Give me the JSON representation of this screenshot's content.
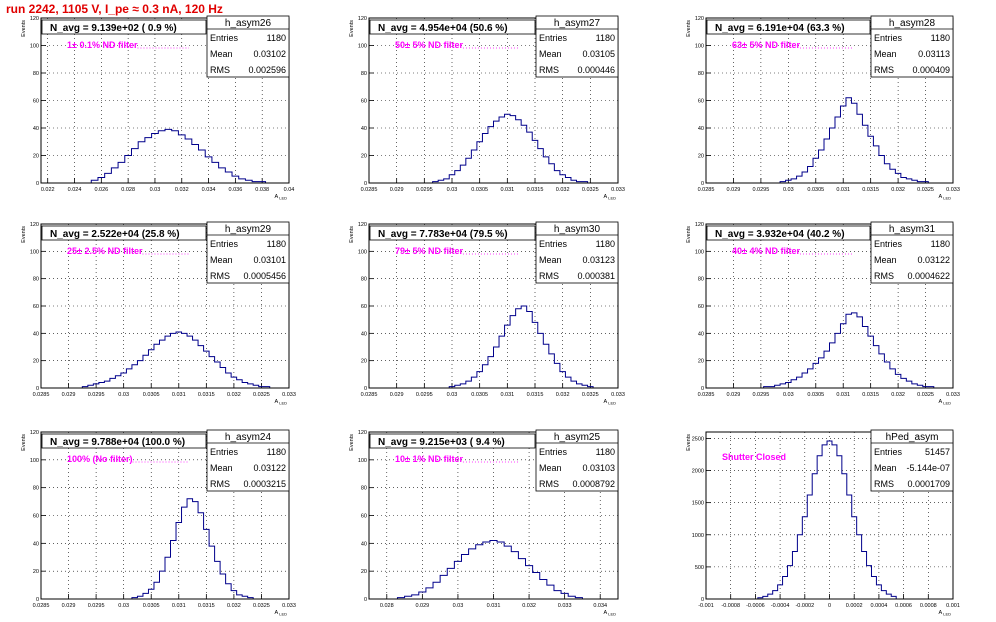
{
  "header": {
    "run_title": "run 2242,  1105 V, I_pe ≈ 0.3 nA, 120 Hz"
  },
  "ylabel": "Events",
  "stat_labels": {
    "entries": "Entries",
    "mean": "Mean",
    "rms": "RMS"
  },
  "chart_data": [
    {
      "type": "histogram",
      "hist_name": "h_asym26",
      "title": "N_avg = 9.139e+02 ( 0.9 %)",
      "annotation": "1± 0.1% ND filter",
      "xlabel": "A_LED",
      "ylabel": "Events",
      "xlim": [
        0.0215,
        0.04
      ],
      "ylim": [
        0,
        120
      ],
      "x_ticks": [
        "0.022",
        "0.024",
        "0.026",
        "0.028",
        "0.03",
        "0.032",
        "0.034",
        "0.036",
        "0.038",
        "0.04"
      ],
      "y_ticks": [
        "0",
        "20",
        "40",
        "60",
        "80",
        "100",
        "120"
      ],
      "grid": true,
      "stats": {
        "entries": "1180",
        "mean": "0.03102",
        "rms": "0.002596"
      },
      "x": [
        0.0255,
        0.026,
        0.0265,
        0.027,
        0.0275,
        0.028,
        0.0285,
        0.029,
        0.0295,
        0.03,
        0.0305,
        0.031,
        0.0315,
        0.032,
        0.0325,
        0.033,
        0.0335,
        0.034,
        0.0345,
        0.035,
        0.0355,
        0.036,
        0.0365,
        0.037,
        0.0375,
        0.038,
        0.0385
      ],
      "values": [
        2,
        4,
        7,
        11,
        15,
        20,
        25,
        30,
        33,
        36,
        38,
        39,
        38,
        35,
        32,
        28,
        24,
        19,
        15,
        11,
        8,
        5,
        3,
        2,
        1,
        1,
        0
      ]
    },
    {
      "type": "histogram",
      "hist_name": "h_asym27",
      "title": "N_avg = 4.954e+04 (50.6 %)",
      "annotation": "50± 5% ND filter",
      "xlabel": "A_LED",
      "ylabel": "Events",
      "xlim": [
        0.0285,
        0.033
      ],
      "ylim": [
        0,
        120
      ],
      "x_ticks": [
        "0.0285",
        "0.029",
        "0.0295",
        "0.03",
        "0.0305",
        "0.031",
        "0.0315",
        "0.032",
        "0.0325",
        "0.033"
      ],
      "y_ticks": [
        "0",
        "20",
        "40",
        "60",
        "80",
        "100",
        "120"
      ],
      "grid": true,
      "stats": {
        "entries": "1180",
        "mean": "0.03105",
        "rms": "0.000446"
      },
      "x": [
        0.0297,
        0.0298,
        0.0299,
        0.03,
        0.0301,
        0.0302,
        0.0303,
        0.0304,
        0.0305,
        0.0306,
        0.0307,
        0.0308,
        0.0309,
        0.031,
        0.0311,
        0.0312,
        0.0313,
        0.0314,
        0.0315,
        0.0316,
        0.0317,
        0.0318,
        0.0319,
        0.032,
        0.0321,
        0.0322,
        0.0323,
        0.0324
      ],
      "values": [
        1,
        2,
        3,
        6,
        9,
        13,
        18,
        24,
        30,
        36,
        41,
        45,
        48,
        50,
        49,
        46,
        42,
        37,
        31,
        25,
        19,
        14,
        9,
        6,
        4,
        2,
        1,
        1
      ]
    },
    {
      "type": "histogram",
      "hist_name": "h_asym28",
      "title": "N_avg = 6.191e+04 (63.3 %)",
      "annotation": "63± 5% ND filter",
      "xlabel": "A_LED",
      "ylabel": "Events",
      "xlim": [
        0.0285,
        0.033
      ],
      "ylim": [
        0,
        120
      ],
      "x_ticks": [
        "0.0285",
        "0.029",
        "0.0295",
        "0.03",
        "0.0305",
        "0.031",
        "0.0315",
        "0.032",
        "0.0325",
        "0.033"
      ],
      "y_ticks": [
        "0",
        "20",
        "40",
        "60",
        "80",
        "100",
        "120"
      ],
      "grid": true,
      "stats": {
        "entries": "1180",
        "mean": "0.03113",
        "rms": "0.000409"
      },
      "x": [
        0.0299,
        0.03,
        0.0301,
        0.0302,
        0.0303,
        0.0304,
        0.0305,
        0.0306,
        0.0307,
        0.0308,
        0.0309,
        0.031,
        0.0311,
        0.0312,
        0.0313,
        0.0314,
        0.0315,
        0.0316,
        0.0317,
        0.0318,
        0.0319,
        0.032,
        0.0321,
        0.0322,
        0.0323,
        0.0324,
        0.0325
      ],
      "values": [
        1,
        2,
        3,
        5,
        8,
        12,
        18,
        24,
        32,
        40,
        48,
        56,
        62,
        58,
        50,
        42,
        34,
        27,
        20,
        14,
        10,
        7,
        4,
        3,
        2,
        1,
        1
      ]
    },
    {
      "type": "histogram",
      "hist_name": "h_asym29",
      "title": "N_avg = 2.522e+04 (25.8 %)",
      "annotation": "25± 2.5% ND filter",
      "xlabel": "A_LED",
      "ylabel": "Events",
      "xlim": [
        0.0285,
        0.033
      ],
      "ylim": [
        0,
        120
      ],
      "x_ticks": [
        "0.0285",
        "0.029",
        "0.0295",
        "0.03",
        "0.0305",
        "0.031",
        "0.0315",
        "0.032",
        "0.0325",
        "0.033"
      ],
      "y_ticks": [
        "0",
        "20",
        "40",
        "60",
        "80",
        "100",
        "120"
      ],
      "grid": true,
      "stats": {
        "entries": "1180",
        "mean": "0.03101",
        "rms": "0.0005456"
      },
      "x": [
        0.0293,
        0.0294,
        0.0295,
        0.0296,
        0.0297,
        0.0298,
        0.0299,
        0.03,
        0.0301,
        0.0302,
        0.0303,
        0.0304,
        0.0305,
        0.0306,
        0.0307,
        0.0308,
        0.0309,
        0.031,
        0.0311,
        0.0312,
        0.0313,
        0.0314,
        0.0315,
        0.0316,
        0.0317,
        0.0318,
        0.0319,
        0.032,
        0.0321,
        0.0322,
        0.0323,
        0.0324,
        0.0325,
        0.0326
      ],
      "values": [
        1,
        2,
        3,
        4,
        5,
        7,
        9,
        11,
        14,
        17,
        20,
        24,
        28,
        32,
        35,
        38,
        40,
        41,
        40,
        38,
        35,
        31,
        27,
        23,
        19,
        15,
        11,
        8,
        6,
        4,
        3,
        2,
        1,
        1
      ]
    },
    {
      "type": "histogram",
      "hist_name": "h_asym30",
      "title": "N_avg = 7.783e+04 (79.5 %)",
      "annotation": "79± 5% ND filter",
      "xlabel": "A_LED",
      "ylabel": "Events",
      "xlim": [
        0.0285,
        0.033
      ],
      "ylim": [
        0,
        120
      ],
      "x_ticks": [
        "0.0285",
        "0.029",
        "0.0295",
        "0.03",
        "0.0305",
        "0.031",
        "0.0315",
        "0.032",
        "0.0325",
        "0.033"
      ],
      "y_ticks": [
        "0",
        "20",
        "40",
        "60",
        "80",
        "100",
        "120"
      ],
      "grid": true,
      "stats": {
        "entries": "1180",
        "mean": "0.03123",
        "rms": "0.000381"
      },
      "x": [
        0.03,
        0.0301,
        0.0302,
        0.0303,
        0.0304,
        0.0305,
        0.0306,
        0.0307,
        0.0308,
        0.0309,
        0.031,
        0.0311,
        0.0312,
        0.0313,
        0.0314,
        0.0315,
        0.0316,
        0.0317,
        0.0318,
        0.0319,
        0.032,
        0.0321,
        0.0322,
        0.0323,
        0.0324,
        0.0325
      ],
      "values": [
        1,
        2,
        3,
        5,
        8,
        12,
        17,
        23,
        30,
        38,
        46,
        53,
        58,
        60,
        56,
        48,
        40,
        32,
        25,
        18,
        12,
        8,
        5,
        3,
        2,
        1
      ]
    },
    {
      "type": "histogram",
      "hist_name": "h_asym31",
      "title": "N_avg = 3.932e+04 (40.2 %)",
      "annotation": "40± 4% ND filter",
      "xlabel": "A_LED",
      "ylabel": "Events",
      "xlim": [
        0.0285,
        0.033
      ],
      "ylim": [
        0,
        120
      ],
      "x_ticks": [
        "0.0285",
        "0.029",
        "0.0295",
        "0.03",
        "0.0305",
        "0.031",
        "0.0315",
        "0.032",
        "0.0325",
        "0.033"
      ],
      "y_ticks": [
        "0",
        "20",
        "40",
        "60",
        "80",
        "100",
        "120"
      ],
      "grid": true,
      "stats": {
        "entries": "1180",
        "mean": "0.03122",
        "rms": "0.0004622"
      },
      "x": [
        0.0296,
        0.0297,
        0.0298,
        0.0299,
        0.03,
        0.0301,
        0.0302,
        0.0303,
        0.0304,
        0.0305,
        0.0306,
        0.0307,
        0.0308,
        0.0309,
        0.031,
        0.0311,
        0.0312,
        0.0313,
        0.0314,
        0.0315,
        0.0316,
        0.0317,
        0.0318,
        0.0319,
        0.032,
        0.0321,
        0.0322,
        0.0323,
        0.0324,
        0.0325,
        0.0326
      ],
      "values": [
        1,
        1,
        2,
        3,
        4,
        6,
        8,
        11,
        14,
        18,
        22,
        27,
        33,
        40,
        47,
        54,
        55,
        52,
        45,
        38,
        31,
        25,
        19,
        14,
        10,
        7,
        5,
        3,
        2,
        1,
        1
      ]
    },
    {
      "type": "histogram",
      "hist_name": "h_asym24",
      "title": "N_avg = 9.788e+04 (100.0 %)",
      "annotation": "100% (No filter)",
      "xlabel": "A_LED",
      "ylabel": "Events",
      "xlim": [
        0.0285,
        0.033
      ],
      "ylim": [
        0,
        120
      ],
      "x_ticks": [
        "0.0285",
        "0.029",
        "0.0295",
        "0.03",
        "0.0305",
        "0.031",
        "0.0315",
        "0.032",
        "0.0325",
        "0.033"
      ],
      "y_ticks": [
        "0",
        "20",
        "40",
        "60",
        "80",
        "100",
        "120"
      ],
      "grid": true,
      "stats": {
        "entries": "1180",
        "mean": "0.03122",
        "rms": "0.0003215"
      },
      "x": [
        0.0302,
        0.0303,
        0.0304,
        0.0305,
        0.0306,
        0.0307,
        0.0308,
        0.0309,
        0.031,
        0.0311,
        0.0312,
        0.0313,
        0.0314,
        0.0315,
        0.0316,
        0.0317,
        0.0318,
        0.0319,
        0.032,
        0.0321,
        0.0322,
        0.0323
      ],
      "values": [
        1,
        2,
        4,
        7,
        12,
        20,
        30,
        42,
        55,
        66,
        72,
        70,
        62,
        50,
        38,
        27,
        18,
        11,
        6,
        3,
        2,
        1
      ]
    },
    {
      "type": "histogram",
      "hist_name": "h_asym25",
      "title": "N_avg = 9.215e+03 ( 9.4 %)",
      "annotation": "10± 1% ND filter",
      "xlabel": "A_LED",
      "ylabel": "Events",
      "xlim": [
        0.0275,
        0.0345
      ],
      "ylim": [
        0,
        120
      ],
      "x_ticks": [
        "0.028",
        "0.029",
        "0.03",
        "0.031",
        "0.032",
        "0.033",
        "0.034"
      ],
      "y_ticks": [
        "0",
        "20",
        "40",
        "60",
        "80",
        "100",
        "120"
      ],
      "grid": true,
      "stats": {
        "entries": "1180",
        "mean": "0.03103",
        "rms": "0.0008792"
      },
      "x": [
        0.0284,
        0.0286,
        0.0288,
        0.029,
        0.0292,
        0.0294,
        0.0296,
        0.0298,
        0.03,
        0.0302,
        0.0304,
        0.0306,
        0.0308,
        0.031,
        0.0312,
        0.0314,
        0.0316,
        0.0318,
        0.032,
        0.0322,
        0.0324,
        0.0326,
        0.0328,
        0.033,
        0.0332,
        0.0334
      ],
      "values": [
        1,
        2,
        3,
        5,
        8,
        12,
        17,
        22,
        27,
        32,
        36,
        39,
        41,
        42,
        41,
        38,
        34,
        29,
        24,
        19,
        14,
        10,
        6,
        4,
        2,
        1
      ]
    },
    {
      "type": "histogram",
      "hist_name": "hPed_asym",
      "title": "",
      "annotation": "Shutter Closed",
      "xlabel": "A_LED",
      "ylabel": "Events",
      "xlim": [
        -0.001,
        0.001
      ],
      "ylim": [
        0,
        2600
      ],
      "x_ticks": [
        "-0.001",
        "-0.0008",
        "-0.0006",
        "-0.0004",
        "-0.0002",
        "0",
        "0.0002",
        "0.0004",
        "0.0006",
        "0.0008",
        "0.001"
      ],
      "y_ticks": [
        "0",
        "500",
        "1000",
        "1500",
        "2000",
        "2500"
      ],
      "grid": true,
      "stats": {
        "entries": "51457",
        "mean": "-5.144e-07",
        "rms": "0.0001709"
      },
      "x": [
        -0.00056,
        -0.00052,
        -0.00048,
        -0.00044,
        -0.0004,
        -0.00036,
        -0.00032,
        -0.00028,
        -0.00024,
        -0.0002,
        -0.00016,
        -0.00012,
        -8e-05,
        -4e-05,
        0,
        4e-05,
        8e-05,
        0.00012,
        0.00016,
        0.0002,
        0.00024,
        0.00028,
        0.00032,
        0.00036,
        0.0004,
        0.00044,
        0.00048,
        0.00052
      ],
      "values": [
        20,
        40,
        75,
        130,
        220,
        350,
        520,
        740,
        1000,
        1280,
        1620,
        1950,
        2230,
        2400,
        2460,
        2400,
        2230,
        1950,
        1620,
        1280,
        1000,
        740,
        520,
        350,
        220,
        130,
        75,
        40
      ]
    }
  ]
}
